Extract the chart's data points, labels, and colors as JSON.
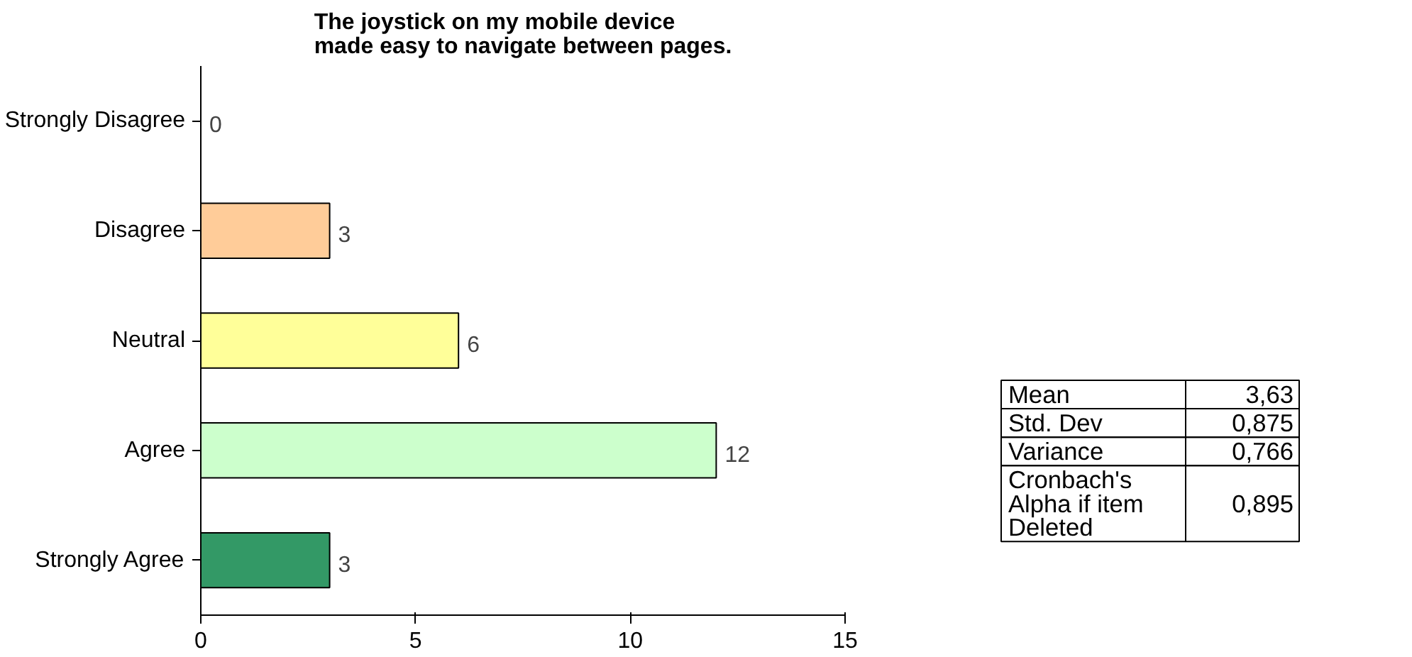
{
  "chart_data": [
    {
      "type": "bar",
      "orientation": "horizontal",
      "title": "The joystick on my mobile device made easy to navigate between pages.",
      "categories": [
        "Strongly Disagree",
        "Disagree",
        "Neutral",
        "Agree",
        "Strongly Agree"
      ],
      "values": [
        0,
        3,
        6,
        12,
        3
      ],
      "colors": [
        "#ff8080",
        "#ffcc99",
        "#ffff99",
        "#ccffcc",
        "#339966"
      ],
      "xlim": [
        0,
        15
      ],
      "xticks": [
        0,
        5,
        10,
        15
      ],
      "grid": false,
      "data_labels": true
    },
    {
      "type": "other",
      "annotations": [
        "Mean",
        "3,63",
        "Std. Dev",
        "0,875",
        "Variance",
        "0,766",
        "Cronbach's Alpha if item Deleted",
        "0,895"
      ]
    }
  ]
}
